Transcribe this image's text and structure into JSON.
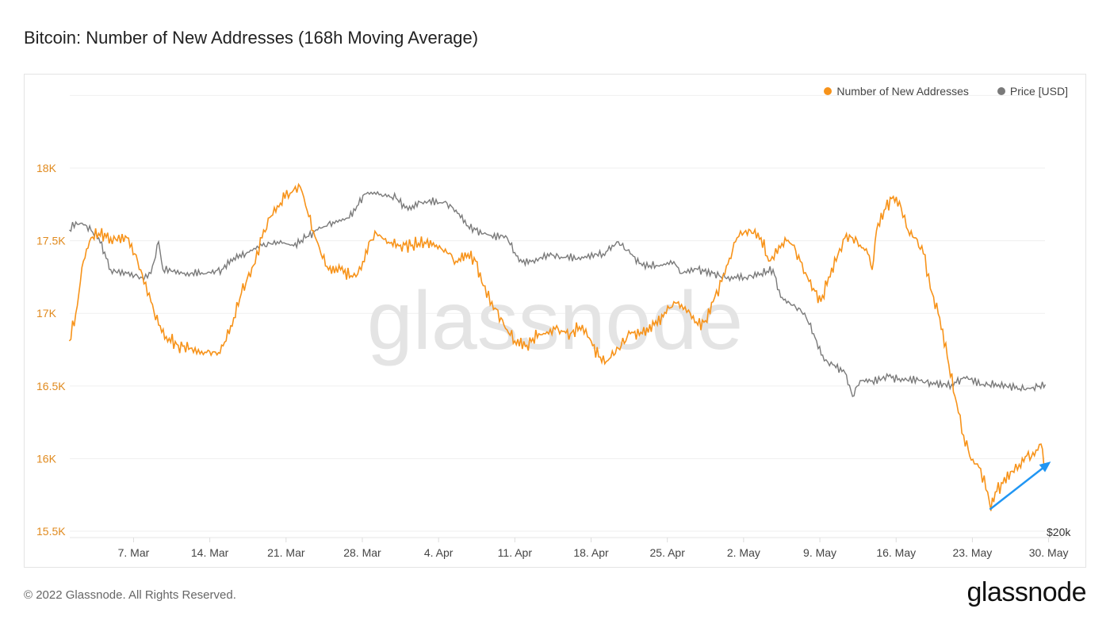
{
  "header": {
    "title": "Bitcoin: Number of New Addresses (168h Moving Average)"
  },
  "footer": {
    "copyright": "© 2022 Glassnode. All Rights Reserved.",
    "logo": "glassnode"
  },
  "watermark": "glassnode",
  "colors": {
    "addresses": "#f7931a",
    "price": "#7a7a7a",
    "arrow": "#2196f3",
    "left_axis": "#e08a1e"
  },
  "chart_data": {
    "type": "line",
    "title": "Bitcoin: Number of New Addresses (168h Moving Average)",
    "x_unit": "days since 1 Mar 2022",
    "x_ticks": [
      {
        "day": 6,
        "label": "7. Mar"
      },
      {
        "day": 13,
        "label": "14. Mar"
      },
      {
        "day": 20,
        "label": "21. Mar"
      },
      {
        "day": 27,
        "label": "28. Mar"
      },
      {
        "day": 34,
        "label": "4. Apr"
      },
      {
        "day": 41,
        "label": "11. Apr"
      },
      {
        "day": 48,
        "label": "18. Apr"
      },
      {
        "day": 55,
        "label": "25. Apr"
      },
      {
        "day": 62,
        "label": "2. May"
      },
      {
        "day": 69,
        "label": "9. May"
      },
      {
        "day": 76,
        "label": "16. May"
      },
      {
        "day": 83,
        "label": "23. May"
      },
      {
        "day": 90,
        "label": "30. May"
      }
    ],
    "y_left": {
      "ylim": [
        15500,
        18500
      ],
      "ticks": [
        {
          "v": 15500,
          "label": "15.5K"
        },
        {
          "v": 16000,
          "label": "16K"
        },
        {
          "v": 16500,
          "label": "16.5K"
        },
        {
          "v": 17000,
          "label": "17K"
        },
        {
          "v": 17500,
          "label": "17.5K"
        },
        {
          "v": 18000,
          "label": "18K"
        }
      ]
    },
    "y_right": {
      "scale": "log",
      "ticks": [
        {
          "v": 20000,
          "label": "$20k"
        }
      ]
    },
    "grid": true,
    "legend_placement": "top-right",
    "series": [
      {
        "name": "Number of New Addresses",
        "axis": "left",
        "x": [
          0.1,
          0.7,
          1.4,
          2.1,
          2.8,
          3.9,
          5.4,
          6.1,
          6.8,
          7.6,
          8.3,
          9.0,
          10.1,
          11.2,
          12.7,
          13.8,
          14.5,
          15.2,
          15.9,
          17.0,
          17.8,
          18.5,
          19.2,
          19.9,
          20.7,
          21.3,
          21.8,
          22.5,
          23.2,
          23.9,
          25.0,
          26.1,
          26.9,
          27.6,
          28.3,
          29.4,
          30.5,
          31.6,
          32.7,
          33.8,
          34.9,
          35.6,
          36.7,
          37.4,
          38.1,
          38.9,
          40.0,
          41.0,
          42.1,
          43.2,
          44.7,
          46.1,
          47.2,
          48.0,
          48.7,
          49.4,
          50.5,
          51.6,
          52.7,
          53.8,
          54.9,
          55.6,
          56.3,
          57.1,
          57.8,
          58.5,
          59.2,
          60.0,
          60.7,
          61.4,
          62.2,
          62.9,
          63.6,
          64.3,
          65.1,
          65.8,
          66.5,
          67.2,
          68.0,
          69.1,
          69.8,
          70.5,
          71.3,
          72.0,
          72.7,
          73.4,
          73.8,
          74.2,
          74.9,
          75.6,
          76.3,
          77.1,
          77.8,
          78.5,
          79.3,
          80.0,
          80.7,
          81.4,
          82.2,
          82.9,
          83.6,
          84.4,
          84.7,
          85.1,
          85.8,
          86.5,
          87.3,
          88.0,
          88.7,
          89.3,
          89.7
        ],
        "values": [
          16810,
          17000,
          17360,
          17520,
          17550,
          17520,
          17520,
          17410,
          17270,
          17080,
          16920,
          16840,
          16780,
          16760,
          16730,
          16730,
          16810,
          16970,
          17140,
          17330,
          17520,
          17660,
          17740,
          17790,
          17850,
          17870,
          17740,
          17570,
          17410,
          17300,
          17300,
          17250,
          17300,
          17490,
          17550,
          17490,
          17470,
          17470,
          17490,
          17470,
          17410,
          17360,
          17410,
          17360,
          17190,
          17080,
          16920,
          16810,
          16780,
          16860,
          16890,
          16860,
          16920,
          16810,
          16700,
          16670,
          16760,
          16860,
          16860,
          16920,
          17000,
          17080,
          17060,
          17000,
          16920,
          16950,
          17080,
          17220,
          17380,
          17520,
          17570,
          17550,
          17520,
          17360,
          17410,
          17520,
          17470,
          17360,
          17220,
          17080,
          17250,
          17360,
          17520,
          17520,
          17470,
          17410,
          17300,
          17570,
          17710,
          17790,
          17770,
          17570,
          17520,
          17410,
          17140,
          16970,
          16700,
          16430,
          16160,
          15990,
          15940,
          15770,
          15640,
          15770,
          15830,
          15910,
          15960,
          16020,
          16020,
          16100,
          15940
        ]
      },
      {
        "name": "Price [USD]",
        "axis": "right",
        "x": [
          0.1,
          0.7,
          1.7,
          2.8,
          3.9,
          5.4,
          6.8,
          7.6,
          8.3,
          8.7,
          10.5,
          12.7,
          14.1,
          15.2,
          16.3,
          17.8,
          19.2,
          20.7,
          21.8,
          22.9,
          24.3,
          25.8,
          26.5,
          27.2,
          28.7,
          30.1,
          31.2,
          32.3,
          34.5,
          35.6,
          36.7,
          38.1,
          40.3,
          41.4,
          42.5,
          44.0,
          45.4,
          47.6,
          49.1,
          50.5,
          51.6,
          52.7,
          54.1,
          55.6,
          56.3,
          57.8,
          59.2,
          60.3,
          62.2,
          63.6,
          64.7,
          65.4,
          66.5,
          67.6,
          68.7,
          69.4,
          70.2,
          71.3,
          72.0,
          72.7,
          73.8,
          75.3,
          76.7,
          78.2,
          79.6,
          81.1,
          82.5,
          84.0,
          85.4,
          86.9,
          88.3,
          89.7
        ],
        "values": [
          43960,
          44880,
          44420,
          43060,
          39640,
          39230,
          38810,
          39230,
          42620,
          39640,
          39230,
          39230,
          39640,
          40880,
          41300,
          42170,
          42620,
          42170,
          43060,
          43960,
          44880,
          45360,
          46780,
          48270,
          48270,
          47760,
          46300,
          47280,
          47280,
          46300,
          44420,
          43520,
          43060,
          40460,
          40460,
          41300,
          40880,
          40880,
          41300,
          42620,
          41300,
          40040,
          40040,
          40460,
          39230,
          39640,
          39230,
          38810,
          38810,
          39230,
          39640,
          36860,
          36100,
          35370,
          32890,
          31220,
          30900,
          30270,
          28450,
          29650,
          29650,
          29970,
          29650,
          29650,
          29350,
          29350,
          29970,
          29350,
          29350,
          29040,
          29040,
          29350
        ]
      }
    ],
    "annotations": [
      {
        "type": "arrow",
        "from": {
          "day": 84.6,
          "value": 15650
        },
        "to": {
          "day": 90.2,
          "value": 15980
        }
      }
    ]
  }
}
